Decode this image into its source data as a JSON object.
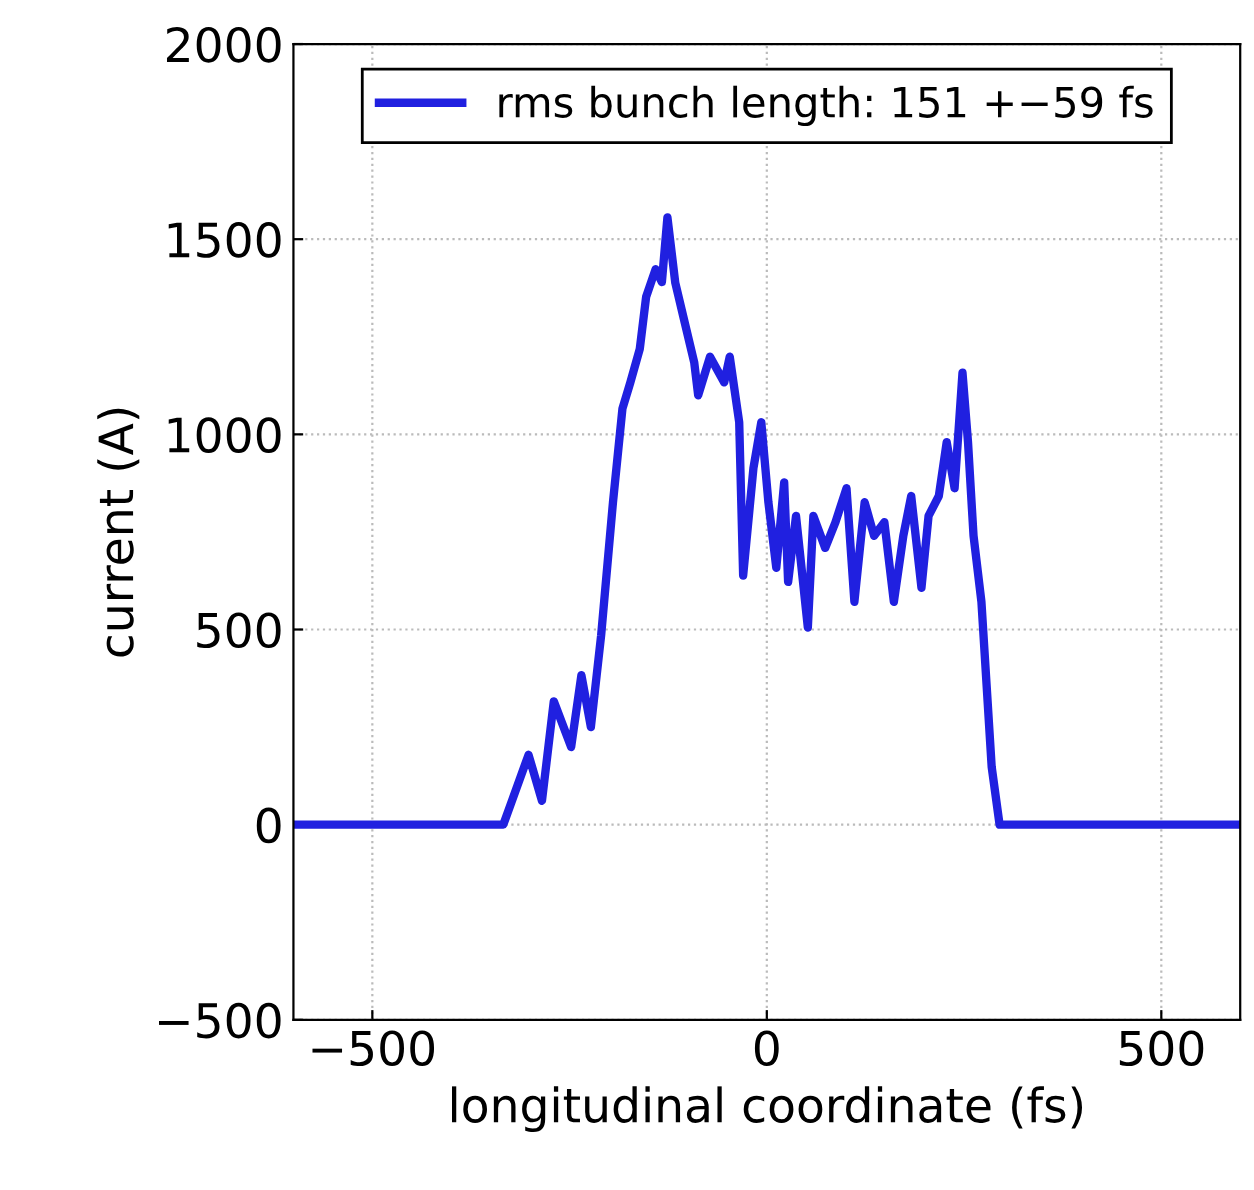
{
  "chart_data": {
    "type": "line",
    "xlabel": "longitudinal coordinate (fs)",
    "ylabel": "current (A)",
    "xlim": [
      -600,
      600
    ],
    "xticks": [
      -500,
      0,
      500
    ],
    "ylim": [
      -500,
      2000
    ],
    "yticks": [
      -500,
      0,
      500,
      1000,
      1500,
      2000
    ],
    "grid": true,
    "legend": "top",
    "line_style": "solid",
    "marker": "none",
    "series": [
      {
        "name": "rms bunch length: 151 +−59 fs",
        "color": "#2020e0",
        "x": [
          -600,
          -334,
          -302,
          -285,
          -270,
          -248,
          -235,
          -223,
          -210,
          -195,
          -183,
          -173,
          -161,
          -153,
          -141,
          -133,
          -126,
          -116,
          -104,
          -92,
          -87,
          -72,
          -54,
          -47,
          -35,
          -30,
          -17,
          -7,
          2,
          12,
          22,
          27,
          37,
          52,
          59,
          74,
          87,
          101,
          111,
          124,
          136,
          149,
          161,
          173,
          183,
          196,
          205,
          218,
          228,
          238,
          248,
          255,
          262,
          272,
          285,
          295,
          600
        ],
        "values": [
          0,
          0,
          179,
          61,
          316,
          199,
          383,
          250,
          485,
          826,
          1066,
          1133,
          1219,
          1352,
          1423,
          1390,
          1556,
          1388,
          1286,
          1184,
          1100,
          1199,
          1133,
          1199,
          1031,
          638,
          913,
          1031,
          826,
          658,
          877,
          622,
          791,
          505,
          791,
          709,
          775,
          862,
          571,
          826,
          740,
          775,
          571,
          740,
          842,
          607,
          791,
          842,
          980,
          862,
          1158,
          980,
          740,
          571,
          148,
          0,
          0
        ]
      }
    ]
  }
}
